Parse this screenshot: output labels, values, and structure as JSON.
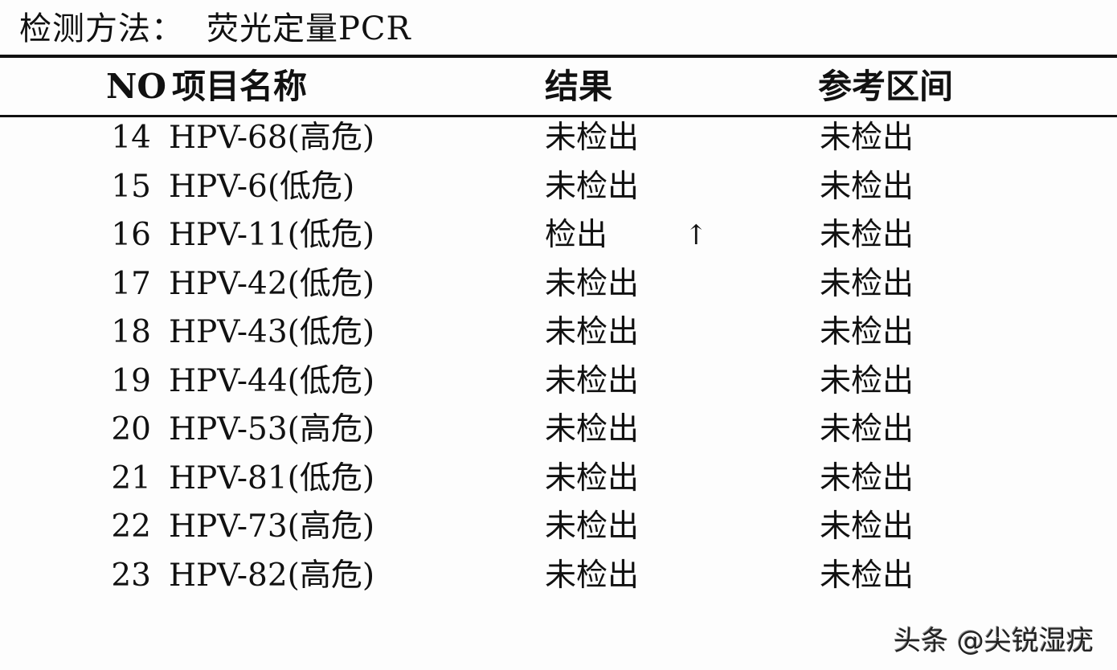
{
  "method": {
    "label": "检测方法：",
    "value": "荧光定量PCR"
  },
  "table": {
    "headers": {
      "no": "NO",
      "name": "项目名称",
      "result": "结果",
      "reference": "参考区间"
    },
    "rows": [
      {
        "no": "14",
        "name": "HPV-68(高危)",
        "result": "未检出",
        "flag": "",
        "reference": "未检出"
      },
      {
        "no": "15",
        "name": "HPV-6(低危)",
        "result": "未检出",
        "flag": "",
        "reference": "未检出"
      },
      {
        "no": "16",
        "name": "HPV-11(低危)",
        "result": "检出",
        "flag": "↑",
        "reference": "未检出"
      },
      {
        "no": "17",
        "name": "HPV-42(低危)",
        "result": "未检出",
        "flag": "",
        "reference": "未检出"
      },
      {
        "no": "18",
        "name": "HPV-43(低危)",
        "result": "未检出",
        "flag": "",
        "reference": "未检出"
      },
      {
        "no": "19",
        "name": "HPV-44(低危)",
        "result": "未检出",
        "flag": "",
        "reference": "未检出"
      },
      {
        "no": "20",
        "name": "HPV-53(高危)",
        "result": "未检出",
        "flag": "",
        "reference": "未检出"
      },
      {
        "no": "21",
        "name": "HPV-81(低危)",
        "result": "未检出",
        "flag": "",
        "reference": "未检出"
      },
      {
        "no": "22",
        "name": "HPV-73(高危)",
        "result": "未检出",
        "flag": "",
        "reference": "未检出"
      },
      {
        "no": "23",
        "name": "HPV-82(高危)",
        "result": "未检出",
        "flag": "",
        "reference": "未检出"
      }
    ]
  },
  "watermark": "头条 @尖锐湿疣"
}
